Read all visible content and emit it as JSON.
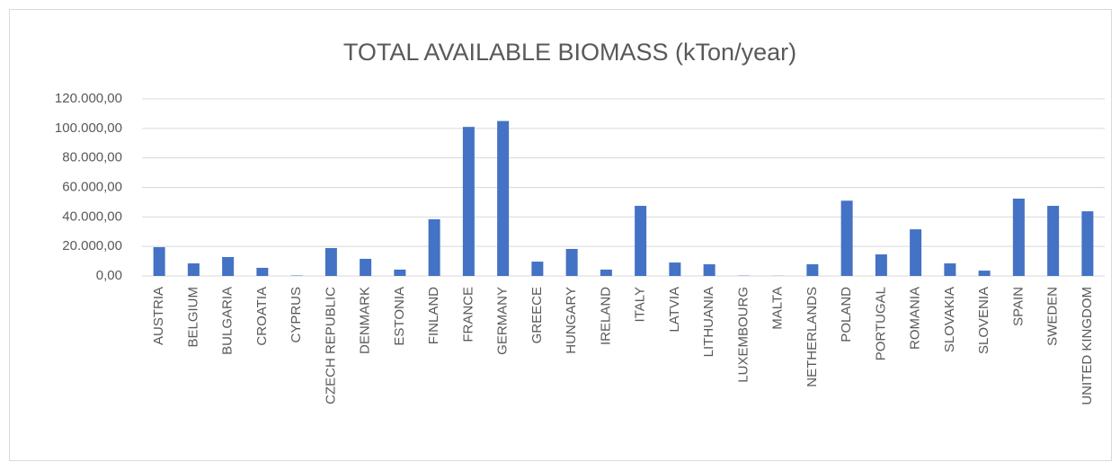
{
  "chart_data": {
    "type": "bar",
    "title": "TOTAL AVAILABLE BIOMASS (kTon/year)",
    "categories": [
      "AUSTRIA",
      "BELGIUM",
      "BULGARIA",
      "CROATIA",
      "CYPRUS",
      "CZECH REPUBLIC",
      "DENMARK",
      "ESTONIA",
      "FINLAND",
      "FRANCE",
      "GERMANY",
      "GREECE",
      "HUNGARY",
      "IRELAND",
      "ITALY",
      "LATVIA",
      "LITHUANIA",
      "LUXEMBOURG",
      "MALTA",
      "NETHERLANDS",
      "POLAND",
      "PORTUGAL",
      "ROMANIA",
      "SLOVAKIA",
      "SLOVENIA",
      "SPAIN",
      "SWEDEN",
      "UNITED KINGDOM"
    ],
    "values": [
      19500,
      8500,
      12800,
      5500,
      300,
      18900,
      11600,
      4300,
      38400,
      101000,
      105000,
      9700,
      18300,
      4300,
      47500,
      9100,
      7900,
      200,
      100,
      7900,
      51000,
      14600,
      31600,
      8500,
      3600,
      52400,
      47500,
      43800
    ],
    "color": "#4472c4",
    "ylim": [
      0,
      120000
    ],
    "yticks": [
      {
        "value": 0,
        "label": "0,00"
      },
      {
        "value": 20000,
        "label": "20.000,00"
      },
      {
        "value": 40000,
        "label": "40.000,00"
      },
      {
        "value": 60000,
        "label": "60.000,00"
      },
      {
        "value": 80000,
        "label": "80.000,00"
      },
      {
        "value": 100000,
        "label": "100.000,00"
      },
      {
        "value": 120000,
        "label": "120.000,00"
      }
    ],
    "grid": true
  }
}
